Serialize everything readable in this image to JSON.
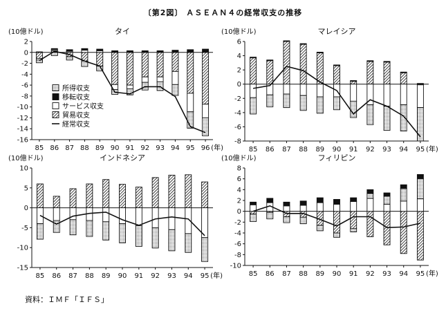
{
  "figure": {
    "title": "〔第2図〕 ＡＳＥＡＮ４の経常収支の推移",
    "source": "資料：ＩＭＦ「ＩＦＳ」"
  },
  "legend": [
    {
      "key": "income",
      "label": "所得収支",
      "pattern": "dots"
    },
    {
      "key": "transfer",
      "label": "移転収支",
      "pattern": "solid"
    },
    {
      "key": "service",
      "label": "サービス収支",
      "pattern": "white"
    },
    {
      "key": "trade",
      "label": "貿易収支",
      "pattern": "hatch"
    },
    {
      "key": "current",
      "label": "経常収支",
      "pattern": "line"
    }
  ],
  "colors": {
    "ink": "#111111",
    "paper": "#ffffff",
    "dots": "#555555"
  },
  "chart_data": [
    {
      "type": "bar",
      "title": "タイ",
      "ylabel": "(10億ドル)",
      "xunit": "(年)",
      "ylim": [
        -16,
        2
      ],
      "yticks": [
        2,
        0,
        -2,
        -4,
        -6,
        -8,
        -10,
        -12,
        -14,
        -16
      ],
      "categories": [
        "85",
        "86",
        "87",
        "88",
        "89",
        "90",
        "91",
        "92",
        "93",
        "94",
        "95",
        "96"
      ],
      "series": [
        {
          "name": "貿易収支",
          "values": [
            -1.1,
            0.3,
            -0.8,
            -1.6,
            -2.5,
            -5.9,
            -6.0,
            -4.5,
            -4.5,
            -3.5,
            -7.5,
            -9.5
          ]
        },
        {
          "name": "サービス収支",
          "values": [
            -0.3,
            0.2,
            0.2,
            0.4,
            0.3,
            -0.9,
            -0.7,
            -1.0,
            -0.9,
            -2.4,
            -3.4,
            -2.5
          ]
        },
        {
          "name": "所得収支",
          "values": [
            -0.5,
            -0.6,
            -0.6,
            -1.0,
            -0.9,
            -0.9,
            -1.1,
            -1.4,
            -1.6,
            -2.0,
            -3.0,
            -3.3
          ]
        },
        {
          "name": "移転収支",
          "values": [
            0.1,
            0.2,
            0.3,
            0.3,
            0.3,
            0.3,
            0.3,
            0.3,
            0.3,
            0.4,
            0.5,
            0.6
          ]
        },
        {
          "name": "経常収支",
          "values": [
            -1.5,
            0.2,
            -0.4,
            -1.6,
            -2.5,
            -7.3,
            -7.6,
            -6.3,
            -6.3,
            -8.1,
            -13.6,
            -14.7
          ]
        }
      ]
    },
    {
      "type": "bar",
      "title": "マレイシア",
      "ylabel": "(10億ドル)",
      "xunit": "(年)",
      "ylim": [
        -8,
        6
      ],
      "yticks": [
        6,
        4,
        2,
        0,
        -2,
        -4,
        -6,
        -8
      ],
      "categories": [
        "85",
        "86",
        "87",
        "88",
        "89",
        "90",
        "91",
        "92",
        "93",
        "94",
        "95"
      ],
      "series": [
        {
          "name": "貿易収支",
          "values": [
            3.7,
            3.3,
            6.0,
            5.6,
            4.4,
            2.6,
            0.4,
            3.2,
            3.1,
            1.6,
            -0.1
          ]
        },
        {
          "name": "サービス収支",
          "values": [
            -1.9,
            -1.5,
            -1.4,
            -1.6,
            -1.8,
            -1.8,
            -2.4,
            -2.9,
            -3.1,
            -2.9,
            -3.2
          ]
        },
        {
          "name": "所得収支",
          "values": [
            -2.3,
            -1.7,
            -1.9,
            -2.1,
            -2.3,
            -1.8,
            -2.3,
            -2.8,
            -3.4,
            -3.7,
            -4.7
          ]
        },
        {
          "name": "移転収支",
          "values": [
            0.1,
            0.1,
            0.1,
            0.1,
            0.1,
            0.1,
            0.1,
            0.1,
            0.1,
            0.1,
            0.1
          ]
        },
        {
          "name": "経常収支",
          "values": [
            -0.6,
            -0.2,
            2.5,
            1.9,
            0.3,
            -0.9,
            -4.2,
            -2.2,
            -3.1,
            -4.5,
            -7.4
          ]
        }
      ]
    },
    {
      "type": "bar",
      "title": "インドネシア",
      "ylabel": "(10億ドル)",
      "xunit": "(年)",
      "ylim": [
        -15,
        10
      ],
      "yticks": [
        10,
        5,
        0,
        -5,
        -10,
        -15
      ],
      "categories": [
        "85",
        "86",
        "87",
        "88",
        "89",
        "90",
        "91",
        "92",
        "93",
        "94",
        "95"
      ],
      "series": [
        {
          "name": "貿易収支",
          "values": [
            6.0,
            2.9,
            4.8,
            6.0,
            7.1,
            5.9,
            5.2,
            7.6,
            8.2,
            8.3,
            6.5
          ]
        },
        {
          "name": "サービス収支",
          "values": [
            -4.0,
            -3.2,
            -3.0,
            -3.2,
            -3.5,
            -4.0,
            -4.5,
            -5.0,
            -5.5,
            -6.5,
            -7.5
          ]
        },
        {
          "name": "所得収支",
          "values": [
            -3.9,
            -3.0,
            -3.8,
            -4.0,
            -4.6,
            -4.8,
            -5.2,
            -5.1,
            -5.3,
            -4.7,
            -6.0
          ]
        },
        {
          "name": "移転収支",
          "values": [
            0.0,
            0.0,
            0.0,
            0.0,
            0.0,
            0.0,
            0.0,
            0.0,
            0.0,
            0.0,
            0.0
          ]
        },
        {
          "name": "経常収支",
          "values": [
            -1.9,
            -4.1,
            -2.1,
            -1.4,
            -1.1,
            -3.0,
            -4.4,
            -2.8,
            -2.3,
            -2.8,
            -7.0
          ]
        }
      ]
    },
    {
      "type": "bar",
      "title": "フィリピン",
      "ylabel": "(10億ドル)",
      "xunit": "(年)",
      "ylim": [
        -10,
        8
      ],
      "yticks": [
        8,
        6,
        4,
        2,
        0,
        -2,
        -4,
        -6,
        -8,
        -10
      ],
      "categories": [
        "85",
        "86",
        "87",
        "88",
        "89",
        "90",
        "91",
        "92",
        "93",
        "94",
        "95"
      ],
      "series": [
        {
          "name": "貿易収支",
          "values": [
            -0.5,
            -0.2,
            -1.0,
            -1.1,
            -2.6,
            -4.0,
            -3.2,
            -4.7,
            -6.2,
            -7.8,
            -9.0
          ]
        },
        {
          "name": "サービス収支",
          "values": [
            1.2,
            1.6,
            1.0,
            1.1,
            1.6,
            1.3,
            1.8,
            2.4,
            1.3,
            1.9,
            2.3
          ]
        },
        {
          "name": "所得収支",
          "values": [
            -1.4,
            -1.2,
            -1.1,
            -1.2,
            -1.0,
            -0.8,
            -0.6,
            0.9,
            1.5,
            2.3,
            3.7
          ]
        },
        {
          "name": "移転収支",
          "values": [
            0.5,
            0.8,
            0.7,
            0.8,
            0.9,
            0.9,
            0.7,
            0.7,
            0.6,
            0.7,
            0.8
          ]
        },
        {
          "name": "経常収支",
          "values": [
            0.0,
            1.0,
            -0.4,
            -0.4,
            -1.5,
            -2.7,
            -1.0,
            -1.0,
            -3.0,
            -2.9,
            -2.2
          ]
        }
      ]
    }
  ]
}
